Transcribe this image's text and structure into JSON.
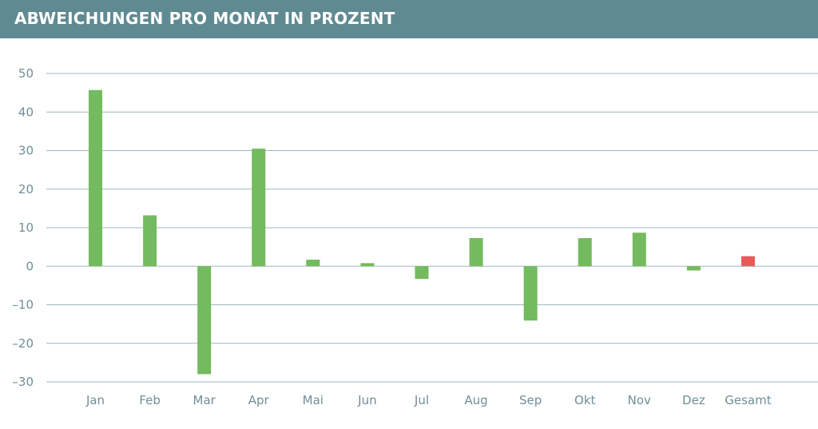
{
  "title": "ABWEICHUNGEN PRO MONAT IN PROZENT",
  "colors": {
    "header_background": "#5f8a92",
    "title_text": "#ffffff",
    "positive_bar": "#74ba5e",
    "total_bar": "#e85a5a",
    "gridline": "#9fb7bd",
    "tick_text": "#6f8f96"
  },
  "chart_data": {
    "type": "bar",
    "title": "ABWEICHUNGEN PRO MONAT IN PROZENT",
    "xlabel": "",
    "ylabel": "",
    "categories": [
      "Jan",
      "Feb",
      "Mar",
      "Apr",
      "Mai",
      "Jun",
      "Jul",
      "Aug",
      "Sep",
      "Okt",
      "Nov",
      "Dez",
      "Gesamt"
    ],
    "values": [
      45.7,
      13.2,
      -28.0,
      30.5,
      1.7,
      0.8,
      -3.3,
      7.3,
      -14.1,
      7.3,
      8.7,
      -1.1,
      2.6
    ],
    "highlight_category": "Gesamt",
    "ylim": [
      -30,
      50
    ],
    "yticks": [
      50,
      40,
      30,
      20,
      10,
      0,
      -10,
      -20,
      -30
    ],
    "ytick_labels": [
      "50",
      "40",
      "30",
      "20",
      "10",
      "0",
      "–10",
      "–20",
      "–30"
    ],
    "grid": true,
    "legend": "none"
  }
}
